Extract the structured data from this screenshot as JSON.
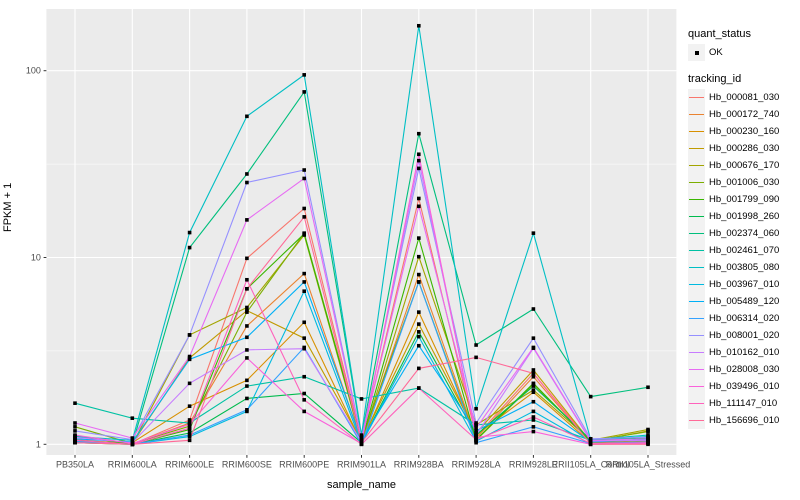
{
  "chart_data": {
    "type": "line",
    "xlabel": "sample_name",
    "ylabel": "FPKM + 1",
    "y_scale": "log10",
    "y_ticks": [
      1,
      10,
      100
    ],
    "y_tick_labels": [
      "1",
      "10",
      "100"
    ],
    "y_minor_breaks": [
      3.162,
      31.62
    ],
    "ylim": [
      0.88,
      214
    ],
    "panel_bg": "#EBEBEB",
    "grid_color": "#FFFFFF",
    "marker_color": "#000000",
    "axis_text_color": "#4D4D4D",
    "categories": [
      "PB350LA",
      "RRIM600LA",
      "RRIM600LE",
      "RRIM600SE",
      "RRIM600PE",
      "RRIM901LA",
      "RRIM928BA",
      "RRIM928LA",
      "RRIM928LE",
      "RRII105LA_Control",
      "RRII105LA_Stressed"
    ],
    "series": [
      {
        "name": "Hb_000081_030",
        "color": "#F8766D",
        "values": [
          1.06,
          1.0,
          1.35,
          9.9,
          18.3,
          1.05,
          20.7,
          1.1,
          2.4,
          1.02,
          1.03
        ]
      },
      {
        "name": "Hb_000172_740",
        "color": "#EA8331",
        "values": [
          1.05,
          1.0,
          1.3,
          4.3,
          8.2,
          1.03,
          8.1,
          1.08,
          2.3,
          1.01,
          1.04
        ]
      },
      {
        "name": "Hb_000230_160",
        "color": "#D89000",
        "values": [
          1.04,
          1.02,
          1.6,
          2.2,
          4.5,
          1.02,
          5.1,
          1.12,
          1.9,
          1.02,
          1.06
        ]
      },
      {
        "name": "Hb_000286_030",
        "color": "#C09B00",
        "values": [
          1.03,
          1.01,
          2.9,
          5.2,
          3.7,
          1.04,
          4.4,
          1.15,
          2.5,
          1.03,
          1.18
        ]
      },
      {
        "name": "Hb_000676_170",
        "color": "#A3A500",
        "values": [
          1.02,
          1.0,
          3.85,
          5.4,
          13.2,
          1.02,
          10.1,
          1.27,
          1.95,
          1.05,
          1.2
        ]
      },
      {
        "name": "Hb_001006_030",
        "color": "#7CAE00",
        "values": [
          1.24,
          1.01,
          1.25,
          5.1,
          13.5,
          1.06,
          7.4,
          1.05,
          2.1,
          1.04,
          1.17
        ]
      },
      {
        "name": "Hb_001799_090",
        "color": "#39B600",
        "values": [
          1.11,
          1.0,
          1.2,
          6.8,
          13.4,
          1.04,
          12.7,
          1.06,
          2.12,
          1.03,
          1.05
        ]
      },
      {
        "name": "Hb_001998_260",
        "color": "#00BB4E",
        "values": [
          1.05,
          1.0,
          1.15,
          1.76,
          1.87,
          1.02,
          4.0,
          1.12,
          2.05,
          1.06,
          1.08
        ]
      },
      {
        "name": "Hb_002374_060",
        "color": "#00BF7D",
        "values": [
          1.02,
          1.0,
          11.3,
          28.0,
          77.0,
          1.1,
          46.0,
          3.4,
          5.3,
          1.8,
          2.02
        ]
      },
      {
        "name": "Hb_002461_070",
        "color": "#00C1A3",
        "values": [
          1.66,
          1.38,
          1.3,
          2.05,
          2.3,
          1.75,
          2.0,
          1.27,
          1.35,
          1.05,
          1.1
        ]
      },
      {
        "name": "Hb_003805_080",
        "color": "#00BFC4",
        "values": [
          1.1,
          1.05,
          13.6,
          57.0,
          95.0,
          1.12,
          174.0,
          1.55,
          13.5,
          1.06,
          1.12
        ]
      },
      {
        "name": "Hb_003967_010",
        "color": "#00BAE0",
        "values": [
          1.04,
          1.0,
          1.1,
          1.5,
          6.6,
          1.01,
          3.77,
          1.04,
          1.5,
          1.0,
          1.02
        ]
      },
      {
        "name": "Hb_005489_120",
        "color": "#00B0F6",
        "values": [
          1.07,
          1.03,
          2.85,
          3.74,
          7.4,
          1.05,
          3.37,
          1.18,
          1.69,
          1.03,
          1.06
        ]
      },
      {
        "name": "Hb_006314_020",
        "color": "#35A2FF",
        "values": [
          1.03,
          1.0,
          1.12,
          1.53,
          3.3,
          1.0,
          7.4,
          1.02,
          1.24,
          1.01,
          1.03
        ]
      },
      {
        "name": "Hb_008001_020",
        "color": "#9590FF",
        "values": [
          1.18,
          1.06,
          3.85,
          25.2,
          29.4,
          1.08,
          30.0,
          1.3,
          3.7,
          1.07,
          1.09
        ]
      },
      {
        "name": "Hb_010162_010",
        "color": "#C77CFF",
        "values": [
          1.09,
          1.02,
          2.12,
          3.2,
          3.25,
          1.03,
          33.0,
          1.12,
          3.27,
          1.04,
          1.05
        ]
      },
      {
        "name": "Hb_028008_030",
        "color": "#E76BF3",
        "values": [
          1.3,
          1.08,
          2.95,
          15.9,
          26.5,
          1.06,
          18.8,
          1.22,
          3.3,
          1.05,
          1.07
        ]
      },
      {
        "name": "Hb_039496_010",
        "color": "#FA62DB",
        "values": [
          1.12,
          1.01,
          1.28,
          2.9,
          1.5,
          1.01,
          35.7,
          1.09,
          1.17,
          1.0,
          1.01
        ]
      },
      {
        "name": "Hb_111147_010",
        "color": "#FF62BC",
        "values": [
          1.05,
          1.0,
          1.22,
          7.6,
          1.73,
          1.0,
          2.0,
          1.06,
          1.4,
          1.01,
          1.02
        ]
      },
      {
        "name": "Hb_156696_010",
        "color": "#FF6A98",
        "values": [
          1.02,
          1.0,
          1.05,
          6.8,
          16.5,
          1.02,
          2.55,
          2.92,
          2.4,
          1.0,
          1.0
        ]
      }
    ],
    "legend": {
      "quant_title": "quant_status",
      "quant_items": [
        {
          "label": "OK"
        }
      ],
      "tracking_title": "tracking_id",
      "position": "right"
    }
  }
}
